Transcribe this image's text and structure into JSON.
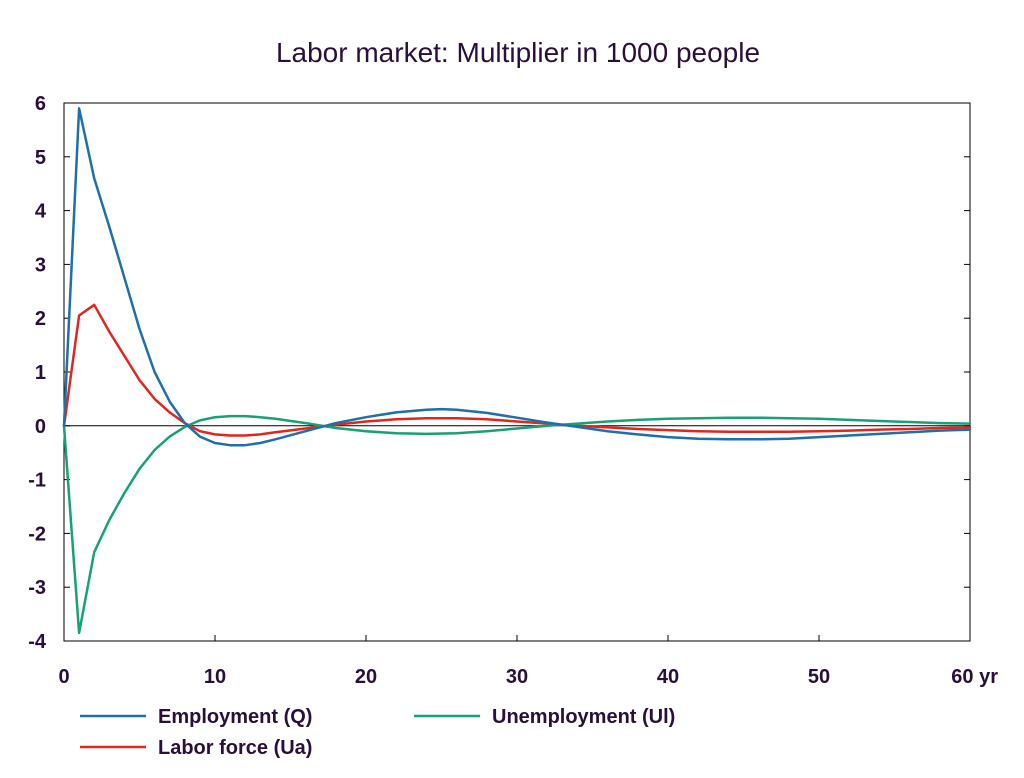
{
  "chart_data": {
    "type": "line",
    "title": "Labor market: Multiplier in 1000 people",
    "xlim": [
      0,
      60
    ],
    "ylim": [
      -4,
      6
    ],
    "x_ticks": [
      {
        "value": 0,
        "label": "0"
      },
      {
        "value": 10,
        "label": "10"
      },
      {
        "value": 20,
        "label": "20"
      },
      {
        "value": 30,
        "label": "30"
      },
      {
        "value": 40,
        "label": "40"
      },
      {
        "value": 50,
        "label": "50"
      },
      {
        "value": 60,
        "label": "60 yr"
      }
    ],
    "y_ticks": [
      {
        "value": 6,
        "label": "6"
      },
      {
        "value": 5,
        "label": "5"
      },
      {
        "value": 4,
        "label": "4"
      },
      {
        "value": 3,
        "label": "3"
      },
      {
        "value": 2,
        "label": "2"
      },
      {
        "value": 1,
        "label": "1"
      },
      {
        "value": 0,
        "label": "0"
      },
      {
        "value": -1,
        "label": "-1"
      },
      {
        "value": -2,
        "label": "-2"
      },
      {
        "value": -3,
        "label": "-3"
      },
      {
        "value": -4,
        "label": "-4"
      }
    ],
    "grid": false,
    "legend_position": "bottom",
    "series": [
      {
        "name": "Employment (Q)",
        "color": "#1f6fa8",
        "x": [
          0,
          1,
          2,
          3,
          4,
          5,
          6,
          7,
          8,
          9,
          10,
          11,
          12,
          13,
          14,
          16,
          18,
          20,
          22,
          24,
          25,
          26,
          28,
          30,
          32,
          34,
          36,
          38,
          40,
          42,
          44,
          46,
          48,
          50,
          52,
          54,
          56,
          58,
          60
        ],
        "y": [
          0,
          5.9,
          4.6,
          3.7,
          2.75,
          1.8,
          1.0,
          0.45,
          0.05,
          -0.2,
          -0.32,
          -0.36,
          -0.36,
          -0.32,
          -0.25,
          -0.1,
          0.05,
          0.16,
          0.25,
          0.3,
          0.31,
          0.3,
          0.24,
          0.15,
          0.06,
          -0.02,
          -0.1,
          -0.16,
          -0.21,
          -0.24,
          -0.25,
          -0.25,
          -0.24,
          -0.21,
          -0.18,
          -0.15,
          -0.12,
          -0.09,
          -0.07
        ]
      },
      {
        "name": "Unemployment (Ul)",
        "color": "#17a174",
        "x": [
          0,
          1,
          2,
          3,
          4,
          5,
          6,
          7,
          8,
          9,
          10,
          11,
          12,
          13,
          14,
          16,
          18,
          20,
          22,
          24,
          26,
          28,
          30,
          32,
          34,
          36,
          38,
          40,
          42,
          44,
          46,
          48,
          50,
          52,
          54,
          56,
          58,
          60
        ],
        "y": [
          0,
          -3.85,
          -2.35,
          -1.75,
          -1.25,
          -0.8,
          -0.45,
          -0.2,
          -0.02,
          0.1,
          0.16,
          0.18,
          0.18,
          0.16,
          0.13,
          0.05,
          -0.04,
          -0.1,
          -0.14,
          -0.15,
          -0.14,
          -0.1,
          -0.05,
          0.0,
          0.04,
          0.08,
          0.11,
          0.13,
          0.14,
          0.15,
          0.15,
          0.14,
          0.13,
          0.11,
          0.09,
          0.07,
          0.05,
          0.04
        ]
      },
      {
        "name": "Labor force (Ua)",
        "color": "#e0261e",
        "x": [
          0,
          1,
          2,
          3,
          4,
          5,
          6,
          7,
          8,
          9,
          10,
          11,
          12,
          13,
          14,
          16,
          18,
          20,
          22,
          24,
          26,
          28,
          30,
          32,
          34,
          36,
          38,
          40,
          42,
          44,
          46,
          48,
          50,
          52,
          54,
          56,
          58,
          60
        ],
        "y": [
          0,
          2.05,
          2.25,
          1.75,
          1.3,
          0.85,
          0.5,
          0.25,
          0.05,
          -0.1,
          -0.16,
          -0.18,
          -0.18,
          -0.16,
          -0.12,
          -0.05,
          0.02,
          0.08,
          0.12,
          0.14,
          0.14,
          0.12,
          0.08,
          0.04,
          0.0,
          -0.03,
          -0.06,
          -0.08,
          -0.1,
          -0.11,
          -0.11,
          -0.11,
          -0.1,
          -0.09,
          -0.07,
          -0.06,
          -0.04,
          -0.03
        ]
      }
    ]
  }
}
